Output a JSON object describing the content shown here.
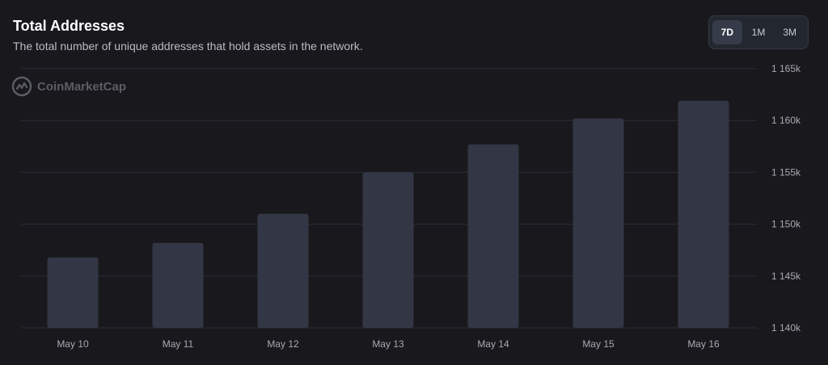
{
  "header": {
    "title": "Total Addresses",
    "subtitle": "The total number of unique addresses that hold assets in the network."
  },
  "range_selector": {
    "options": [
      "7D",
      "1M",
      "3M"
    ],
    "selected": "7D"
  },
  "watermark": {
    "text": "CoinMarketCap",
    "icon": "coinmarketcap-logo-icon"
  },
  "colors": {
    "background": "#19181c",
    "bar": "#333644",
    "gridline": "#2c2c38",
    "axis_text": "#a8abb3"
  },
  "chart_data": {
    "type": "bar",
    "title": "Total Addresses",
    "categories": [
      "May 10",
      "May 11",
      "May 12",
      "May 13",
      "May 14",
      "May 15",
      "May 16"
    ],
    "values": [
      1146800,
      1148200,
      1151000,
      1155000,
      1157700,
      1160200,
      1161900
    ],
    "ylim": [
      1140000,
      1165000
    ],
    "yticks": [
      1140000,
      1145000,
      1150000,
      1155000,
      1160000,
      1165000
    ],
    "ytick_labels": [
      "1 140k",
      "1 145k",
      "1 150k",
      "1 155k",
      "1 160k",
      "1 165k"
    ],
    "y_axis_position": "right",
    "grid": true,
    "legend": "none"
  }
}
